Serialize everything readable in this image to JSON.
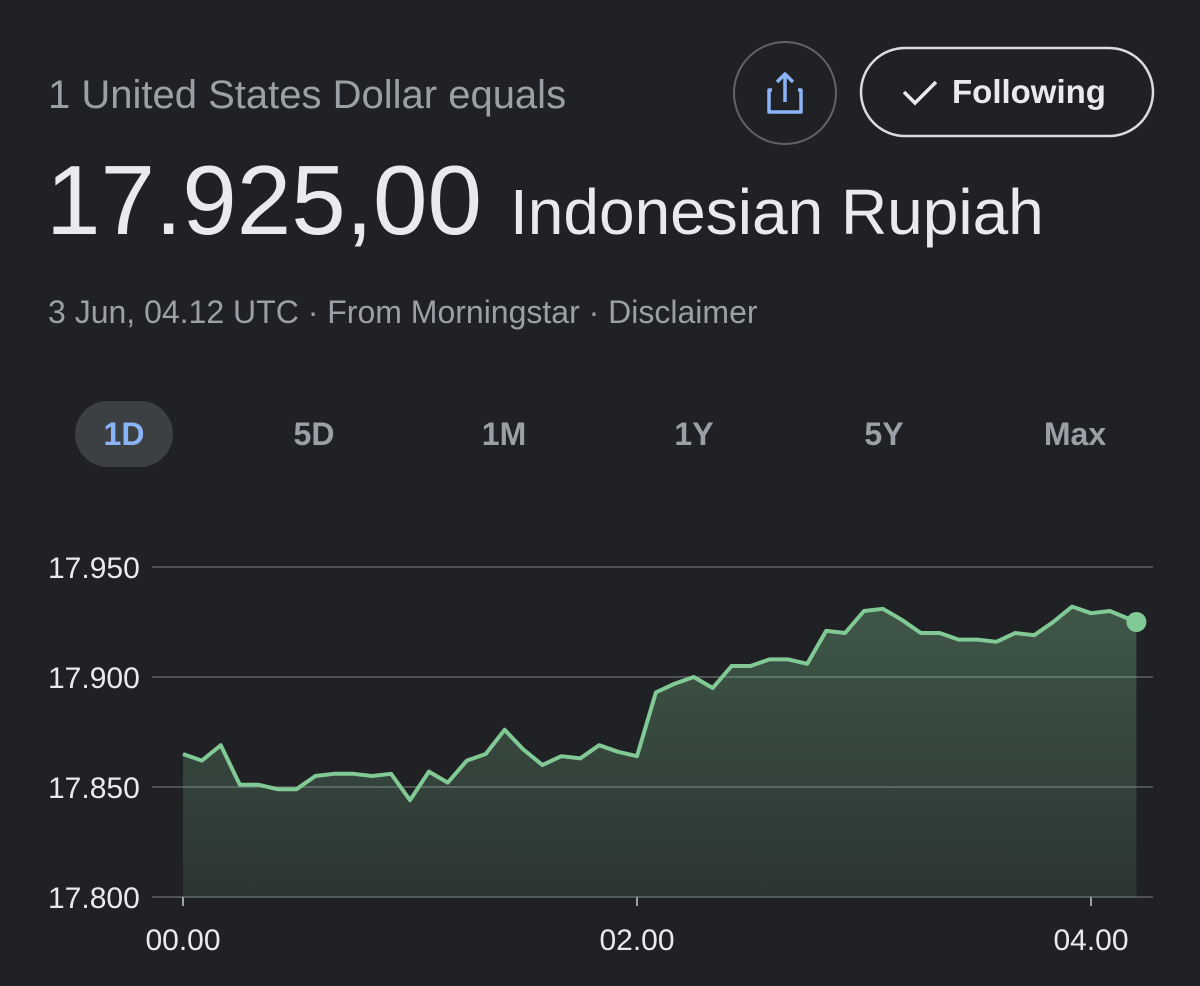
{
  "header": {
    "label": "1 United States Dollar equals",
    "amount": "17.925,00",
    "currency": "Indonesian Rupiah",
    "meta": "3 Jun, 04.12 UTC · From Morningstar · Disclaimer"
  },
  "follow_button": "Following",
  "tabs": [
    "1D",
    "5D",
    "1M",
    "1Y",
    "5Y",
    "Max"
  ],
  "chart_data": {
    "type": "line",
    "color": "#81c995",
    "x": [
      0,
      5,
      10,
      15,
      20,
      25,
      30,
      35,
      40,
      45,
      50,
      55,
      60,
      65,
      70,
      75,
      80,
      85,
      90,
      95,
      100,
      105,
      110,
      115,
      120,
      125,
      130,
      135,
      140,
      145,
      150,
      155,
      160,
      165,
      170,
      175,
      180,
      185,
      190,
      195,
      200,
      205,
      210,
      215,
      220,
      225,
      230,
      235,
      240,
      245,
      252
    ],
    "values": [
      17865,
      17862,
      17869,
      17851,
      17851,
      17849,
      17849,
      17855,
      17856,
      17856,
      17855,
      17856,
      17844,
      17857,
      17852,
      17862,
      17865,
      17876,
      17867,
      17860,
      17864,
      17863,
      17869,
      17866,
      17864,
      17893,
      17897,
      17900,
      17895,
      17905,
      17905,
      17908,
      17908,
      17906,
      17921,
      17920,
      17930,
      17931,
      17926,
      17920,
      17920,
      17917,
      17917,
      17916,
      17920,
      17919,
      17925,
      17932,
      17929,
      17930,
      17925
    ],
    "xlim": [
      0,
      256
    ],
    "xticks": [
      {
        "value": 0,
        "label": "00.00"
      },
      {
        "value": 120,
        "label": "02.00"
      },
      {
        "value": 240,
        "label": "04.00"
      }
    ],
    "ylim": [
      17800,
      17950
    ],
    "yticks": [
      {
        "value": 17800,
        "label": "17.800"
      },
      {
        "value": 17850,
        "label": "17.850"
      },
      {
        "value": 17900,
        "label": "17.900"
      },
      {
        "value": 17950,
        "label": "17.950"
      }
    ],
    "grid": true
  }
}
